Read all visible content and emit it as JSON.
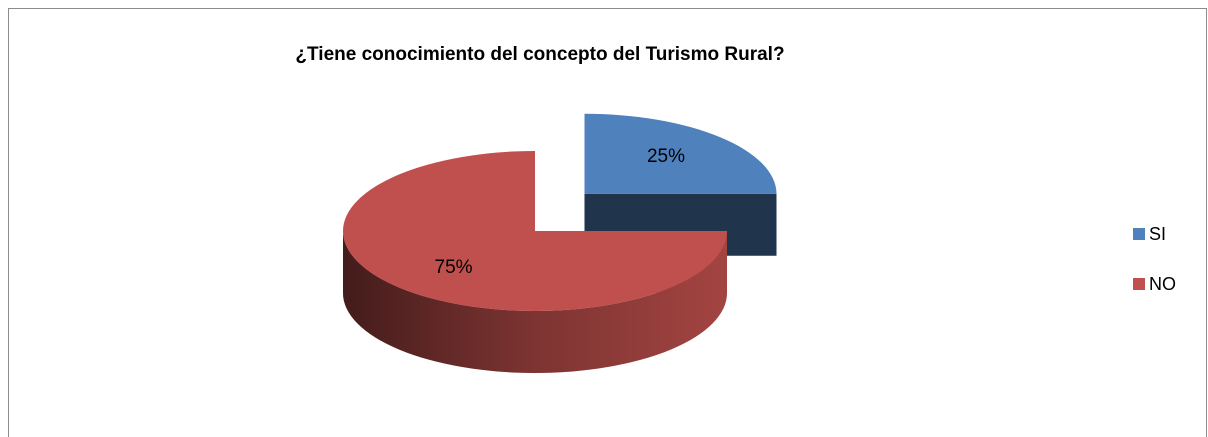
{
  "chart_data": {
    "type": "pie",
    "title": "¿Tiene conocimiento del concepto del Turismo Rural?",
    "categories": [
      "SI",
      "NO"
    ],
    "values": [
      25,
      75
    ],
    "value_labels": [
      "25%",
      "75%"
    ],
    "colors": [
      "#4f81bd",
      "#c0504d"
    ],
    "legend": "right"
  }
}
